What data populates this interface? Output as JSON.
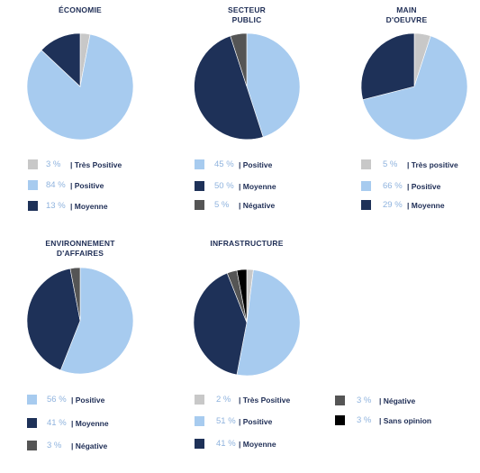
{
  "colors": {
    "Très Positive": "#c8c8c8",
    "Très positive": "#c8c8c8",
    "Positive": "#a7cbef",
    "Moyenne": "#1e3158",
    "Négative": "#555555",
    "Sans opinion": "#000000"
  },
  "chart_data": [
    {
      "type": "pie",
      "title": "ÉCONOMIE",
      "legend": [
        {
          "value_text": "3 %",
          "label": "Très Positive"
        },
        {
          "value_text": "84 %",
          "label": "Positive"
        },
        {
          "value_text": "13 %",
          "label": "Moyenne"
        }
      ],
      "slices": [
        {
          "label": "Très Positive",
          "value": 3
        },
        {
          "label": "Positive",
          "value": 84
        },
        {
          "label": "Moyenne",
          "value": 13
        }
      ]
    },
    {
      "type": "pie",
      "title": "SECTEUR\nPUBLIC",
      "legend": [
        {
          "value_text": "45 %",
          "label": "Positive"
        },
        {
          "value_text": "50 %",
          "label": "Moyenne"
        },
        {
          "value_text": "5 %",
          "label": "Négative"
        }
      ],
      "slices": [
        {
          "label": "Positive",
          "value": 45
        },
        {
          "label": "Moyenne",
          "value": 50
        },
        {
          "label": "Négative",
          "value": 5
        }
      ]
    },
    {
      "type": "pie",
      "title": "MAIN\nD'OEUVRE",
      "legend": [
        {
          "value_text": "5 %",
          "label": "Très positive"
        },
        {
          "value_text": "66 %",
          "label": "Positive"
        },
        {
          "value_text": "29 %",
          "label": "Moyenne"
        }
      ],
      "slices": [
        {
          "label": "Très positive",
          "value": 5
        },
        {
          "label": "Positive",
          "value": 66
        },
        {
          "label": "Moyenne",
          "value": 29
        }
      ]
    },
    {
      "type": "pie",
      "title": "ENVIRONNEMENT\nD'AFFAIRES",
      "legend": [
        {
          "value_text": "56 %",
          "label": "Positive"
        },
        {
          "value_text": "41 %",
          "label": "Moyenne"
        },
        {
          "value_text": "3 %",
          "label": "Négative"
        }
      ],
      "slices": [
        {
          "label": "Positive",
          "value": 56
        },
        {
          "label": "Moyenne",
          "value": 41
        },
        {
          "label": "Négative",
          "value": 3
        }
      ]
    },
    {
      "type": "pie",
      "title": "INFRASTRUCTURE",
      "legend": [
        {
          "value_text": "2 %",
          "label": "Très Positive"
        },
        {
          "value_text": "51 %",
          "label": "Positive"
        },
        {
          "value_text": "41 %",
          "label": "Moyenne"
        },
        {
          "value_text": "3 %",
          "label": "Négative"
        },
        {
          "value_text": "3 %",
          "label": "Sans opinion"
        }
      ],
      "slices": [
        {
          "label": "Très Positive",
          "value": 2
        },
        {
          "label": "Positive",
          "value": 51
        },
        {
          "label": "Moyenne",
          "value": 41
        },
        {
          "label": "Négative",
          "value": 3
        },
        {
          "label": "Sans opinion",
          "value": 3
        }
      ]
    }
  ]
}
